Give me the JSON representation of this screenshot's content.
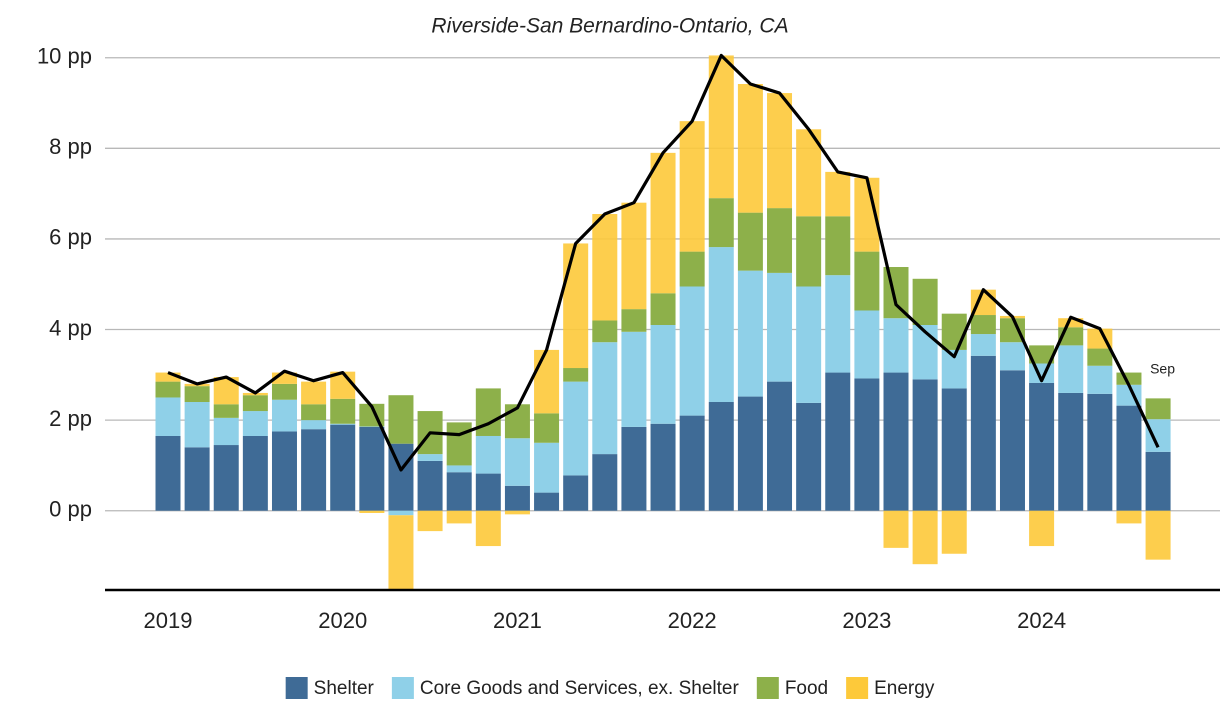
{
  "chart_data": {
    "type": "bar",
    "title": "Riverside-San Bernardino-Ontario, CA",
    "categories": [
      "2019",
      null,
      null,
      null,
      null,
      null,
      "2020",
      null,
      null,
      null,
      null,
      null,
      "2021",
      null,
      null,
      null,
      null,
      null,
      "2022",
      null,
      null,
      null,
      null,
      null,
      "2023",
      null,
      null,
      null,
      null,
      null,
      "2024",
      null,
      null,
      null,
      null
    ],
    "stacked": true,
    "series": [
      {
        "name": "Shelter",
        "color": "#3f6b96",
        "values": [
          1.65,
          1.4,
          1.45,
          1.65,
          1.75,
          1.8,
          1.9,
          1.85,
          1.48,
          1.1,
          0.85,
          0.82,
          0.55,
          0.4,
          0.78,
          1.25,
          1.85,
          1.92,
          2.1,
          2.4,
          2.52,
          2.85,
          2.38,
          3.05,
          2.92,
          3.05,
          2.9,
          2.7,
          3.42,
          3.1,
          2.82,
          2.6,
          2.58,
          2.32,
          1.3
        ]
      },
      {
        "name": "Core Goods and Services, ex. Shelter",
        "color": "#8fd0e8",
        "values": [
          0.85,
          1.0,
          0.6,
          0.55,
          0.7,
          0.2,
          0.02,
          0.01,
          -0.1,
          0.15,
          0.15,
          0.83,
          1.05,
          1.1,
          2.07,
          2.47,
          2.1,
          2.18,
          2.85,
          3.42,
          2.78,
          2.4,
          2.57,
          2.15,
          1.5,
          1.2,
          1.2,
          0.85,
          0.48,
          0.62,
          0.43,
          1.05,
          0.62,
          0.46,
          0.72
        ]
      },
      {
        "name": "Food",
        "color": "#8db04a",
        "values": [
          0.35,
          0.35,
          0.3,
          0.35,
          0.35,
          0.35,
          0.55,
          0.5,
          1.07,
          0.95,
          0.95,
          1.05,
          0.75,
          0.65,
          0.3,
          0.48,
          0.5,
          0.7,
          0.77,
          1.08,
          1.28,
          1.43,
          1.55,
          1.3,
          1.3,
          1.13,
          1.02,
          0.8,
          0.42,
          0.53,
          0.4,
          0.4,
          0.38,
          0.27,
          0.46
        ]
      },
      {
        "name": "Energy",
        "color": "#fdc93a",
        "values": [
          0.2,
          0.05,
          0.6,
          0.05,
          0.25,
          0.5,
          0.6,
          -0.05,
          -1.65,
          -0.45,
          -0.28,
          -0.78,
          -0.08,
          1.4,
          2.75,
          2.35,
          2.35,
          3.1,
          2.88,
          3.15,
          2.84,
          2.54,
          1.92,
          0.98,
          1.63,
          -0.82,
          -1.18,
          -0.95,
          0.56,
          0.05,
          -0.78,
          0.2,
          0.44,
          -0.28,
          -1.08
        ]
      }
    ],
    "line": {
      "color": "#000000",
      "values": [
        3.05,
        2.8,
        2.95,
        2.6,
        3.08,
        2.87,
        3.05,
        2.3,
        0.9,
        1.72,
        1.68,
        1.92,
        2.27,
        3.55,
        5.9,
        6.55,
        6.8,
        7.9,
        8.6,
        10.05,
        9.42,
        9.22,
        8.42,
        7.48,
        7.35,
        4.55,
        3.95,
        3.4,
        4.88,
        4.28,
        2.87,
        4.27,
        4.02,
        2.77,
        1.4
      ]
    },
    "annotation": "Sep",
    "ylim": [
      -1.75,
      10.25
    ],
    "yticks": [
      {
        "value": 0,
        "label": "0 pp"
      },
      {
        "value": 2,
        "label": "2 pp"
      },
      {
        "value": 4,
        "label": "4 pp"
      },
      {
        "value": 6,
        "label": "6 pp"
      },
      {
        "value": 8,
        "label": "8 pp"
      },
      {
        "value": 10,
        "label": "10 pp"
      }
    ],
    "grid": true,
    "legend": "bottom"
  }
}
